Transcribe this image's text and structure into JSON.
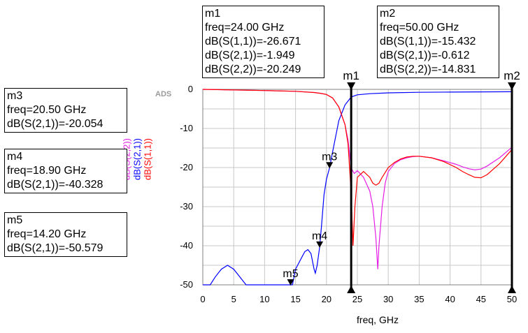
{
  "chart_data": {
    "type": "line",
    "watermark": "ADS",
    "xlabel": "freq, GHz",
    "ylabel": "",
    "xlim": [
      0,
      50
    ],
    "ylim": [
      -50,
      0
    ],
    "x_ticks": [
      "0",
      "5",
      "10",
      "15",
      "20",
      "25",
      "30",
      "35",
      "40",
      "45",
      "50"
    ],
    "y_ticks": [
      "0",
      "-10",
      "-20",
      "-30",
      "-40",
      "-50"
    ],
    "grid": true,
    "legend_position": "left, rotated vertical",
    "series": [
      {
        "name": "dB(S(2,2))",
        "color": "#e51ee5",
        "x": [
          0,
          10,
          15,
          18,
          19,
          20,
          21,
          22,
          23,
          23.5,
          24,
          24.5,
          25,
          26,
          27,
          27.5,
          28,
          28.3,
          28.5,
          29,
          29.5,
          30,
          31,
          32,
          33,
          34,
          35,
          37,
          39,
          41,
          42,
          43,
          44,
          45,
          46,
          48,
          50
        ],
        "values": [
          0,
          -0.3,
          -0.5,
          -0.8,
          -1,
          -1.3,
          -2.2,
          -4.5,
          -9,
          -13,
          -20.2,
          -21.5,
          -20.8,
          -22.5,
          -26,
          -30,
          -38,
          -46,
          -40,
          -30,
          -24,
          -21,
          -19,
          -18,
          -17.5,
          -17.2,
          -17.1,
          -17.5,
          -18.3,
          -19.2,
          -19.8,
          -20.3,
          -20.6,
          -20.4,
          -19.6,
          -17.5,
          -14.8
        ]
      },
      {
        "name": "dB(S(2,1))",
        "color": "#0000ff",
        "x": [
          0,
          0.5,
          1.2,
          2,
          3,
          4,
          5,
          6,
          7,
          7.3,
          14.2,
          14.5,
          15,
          16,
          16.5,
          17,
          17.5,
          18,
          18.2,
          18.5,
          18.9,
          19.2,
          19.6,
          20,
          20.5,
          21,
          22,
          23,
          24,
          25,
          27,
          30,
          35,
          40,
          45,
          50
        ],
        "values": [
          -50,
          -50,
          -50,
          -48,
          -46,
          -45,
          -46,
          -48,
          -50,
          -50,
          -50.6,
          -50,
          -46,
          -43,
          -41.5,
          -41,
          -42,
          -46,
          -47,
          -45,
          -40.3,
          -35,
          -27,
          -23,
          -20.1,
          -16,
          -8,
          -4,
          -1.95,
          -1.4,
          -1.1,
          -0.9,
          -0.75,
          -0.7,
          -0.65,
          -0.612
        ]
      },
      {
        "name": "dB(S(1,1))",
        "color": "#ff0000",
        "x": [
          0,
          10,
          15,
          18,
          19,
          20,
          21,
          22,
          23,
          23.5,
          24,
          24.3,
          24.6,
          25,
          26,
          27,
          27.5,
          28,
          28.5,
          29,
          30,
          31,
          32,
          33,
          34,
          35,
          37,
          39,
          41,
          42,
          43,
          44,
          45,
          46,
          48,
          50
        ],
        "values": [
          0,
          -0.3,
          -0.5,
          -0.8,
          -1,
          -1.3,
          -2.2,
          -4.5,
          -9,
          -14,
          -26.7,
          -40,
          -30,
          -22.5,
          -21,
          -22.5,
          -24,
          -24.5,
          -24,
          -22.5,
          -20,
          -18.7,
          -17.8,
          -17.3,
          -17.1,
          -17.1,
          -17.5,
          -18.5,
          -20,
          -21,
          -21.8,
          -22.5,
          -22.6,
          -21.8,
          -19,
          -15.4
        ]
      }
    ],
    "markers": [
      {
        "id": "m1",
        "freq_label": "freq=24.00 GHz",
        "x": 24.0,
        "readouts": [
          "dB(S(1,1))=-26.671",
          "dB(S(2,1))=-1.949",
          "dB(S(2,2))=-20.249"
        ],
        "style": "vertical-line"
      },
      {
        "id": "m2",
        "freq_label": "freq=50.00 GHz",
        "x": 50.0,
        "readouts": [
          "dB(S(1,1))=-15.432",
          "dB(S(2,1))=-0.612",
          "dB(S(2,2))=-14.831"
        ],
        "style": "vertical-line"
      },
      {
        "id": "m3",
        "freq_label": "freq=20.50 GHz",
        "x": 20.5,
        "y": -20.054,
        "readouts": [
          "dB(S(2,1))=-20.054"
        ],
        "style": "point"
      },
      {
        "id": "m4",
        "freq_label": "freq=18.90 GHz",
        "x": 18.9,
        "y": -40.328,
        "readouts": [
          "dB(S(2,1))=-40.328"
        ],
        "style": "point"
      },
      {
        "id": "m5",
        "freq_label": "freq=14.20 GHz",
        "x": 14.2,
        "y": -50.579,
        "readouts": [
          "dB(S(2,1))=-50.579"
        ],
        "style": "point"
      }
    ]
  }
}
